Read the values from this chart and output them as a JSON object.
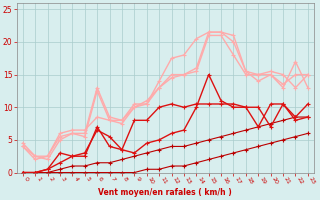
{
  "bg_color": "#d8eeee",
  "grid_color": "#aacccc",
  "xlabel": "Vent moyen/en rafales ( km/h )",
  "xlim": [
    -0.5,
    23.5
  ],
  "ylim": [
    0,
    26
  ],
  "xticks": [
    0,
    1,
    2,
    3,
    4,
    5,
    6,
    7,
    8,
    9,
    10,
    11,
    12,
    13,
    14,
    15,
    16,
    17,
    18,
    19,
    20,
    21,
    22,
    23
  ],
  "yticks": [
    0,
    5,
    10,
    15,
    20,
    25
  ],
  "series": [
    {
      "x": [
        0,
        1,
        2,
        3,
        4,
        5,
        6,
        7,
        8,
        9,
        10,
        11,
        12,
        13,
        14,
        15,
        16,
        17,
        18,
        19,
        20,
        21,
        22,
        23
      ],
      "y": [
        0,
        0,
        0,
        0,
        0,
        0,
        0,
        0,
        0,
        0,
        0.5,
        0.5,
        1,
        1,
        1.5,
        2,
        2.5,
        3,
        3.5,
        4,
        4.5,
        5,
        5.5,
        6
      ],
      "color": "#bb0000",
      "lw": 0.8,
      "marker": "+"
    },
    {
      "x": [
        0,
        1,
        2,
        3,
        4,
        5,
        6,
        7,
        8,
        9,
        10,
        11,
        12,
        13,
        14,
        15,
        16,
        17,
        18,
        19,
        20,
        21,
        22,
        23
      ],
      "y": [
        0,
        0,
        0,
        0.5,
        1,
        1,
        1.5,
        1.5,
        2,
        2.5,
        3,
        3.5,
        4,
        4,
        4.5,
        5,
        5.5,
        6,
        6.5,
        7,
        7.5,
        8,
        8.5,
        8.5
      ],
      "color": "#bb0000",
      "lw": 0.8,
      "marker": "+"
    },
    {
      "x": [
        0,
        1,
        2,
        3,
        4,
        5,
        6,
        7,
        8,
        9,
        10,
        11,
        12,
        13,
        14,
        15,
        16,
        17,
        18,
        19,
        20,
        21,
        22,
        23
      ],
      "y": [
        0,
        0,
        0.5,
        1.5,
        2.5,
        3,
        6.5,
        5.5,
        3.5,
        3,
        4.5,
        5,
        6,
        6.5,
        10,
        15,
        11,
        10,
        10,
        10,
        7,
        10.5,
        8,
        8.5
      ],
      "color": "#dd1111",
      "lw": 1.0,
      "marker": "+"
    },
    {
      "x": [
        0,
        1,
        2,
        3,
        4,
        5,
        6,
        7,
        8,
        9,
        10,
        11,
        12,
        13,
        14,
        15,
        16,
        17,
        18,
        19,
        20,
        21,
        22,
        23
      ],
      "y": [
        0,
        0,
        0.5,
        3,
        2.5,
        2.5,
        7,
        4,
        3.5,
        8,
        8,
        10,
        10.5,
        10,
        10.5,
        10.5,
        10.5,
        10.5,
        10,
        7,
        10.5,
        10.5,
        8.5,
        10.5
      ],
      "color": "#dd1111",
      "lw": 1.0,
      "marker": "+"
    },
    {
      "x": [
        0,
        1,
        2,
        3,
        4,
        5,
        6,
        7,
        8,
        9,
        10,
        11,
        12,
        13,
        14,
        15,
        16,
        17,
        18,
        19,
        20,
        21,
        22,
        23
      ],
      "y": [
        4,
        2.5,
        2,
        5,
        6,
        5.5,
        12.5,
        8,
        7.5,
        10,
        10.5,
        13,
        15,
        15,
        15.5,
        21,
        21,
        18,
        15,
        15,
        15,
        13,
        17,
        13
      ],
      "color": "#ffaaaa",
      "lw": 1.0,
      "marker": "+"
    },
    {
      "x": [
        0,
        1,
        2,
        3,
        4,
        5,
        6,
        7,
        8,
        9,
        10,
        11,
        12,
        13,
        14,
        15,
        16,
        17,
        18,
        19,
        20,
        21,
        22,
        23
      ],
      "y": [
        4,
        2,
        2.5,
        5.5,
        6,
        6,
        13,
        8.5,
        8,
        10.5,
        10.5,
        14,
        17.5,
        18,
        20.5,
        21.5,
        21.5,
        20,
        15.5,
        15,
        15.5,
        15,
        13,
        15
      ],
      "color": "#ffaaaa",
      "lw": 1.0,
      "marker": "+"
    },
    {
      "x": [
        0,
        1,
        2,
        3,
        4,
        5,
        6,
        7,
        8,
        9,
        10,
        11,
        12,
        13,
        14,
        15,
        16,
        17,
        18,
        19,
        20,
        21,
        22,
        23
      ],
      "y": [
        4.5,
        2.5,
        2.5,
        6,
        6.5,
        6.5,
        8.5,
        8,
        8,
        10,
        11,
        13,
        14.5,
        15,
        16,
        21.5,
        21.5,
        21,
        15.5,
        14,
        15,
        13.5,
        15,
        15
      ],
      "color": "#ffaaaa",
      "lw": 1.0,
      "marker": "+"
    }
  ]
}
